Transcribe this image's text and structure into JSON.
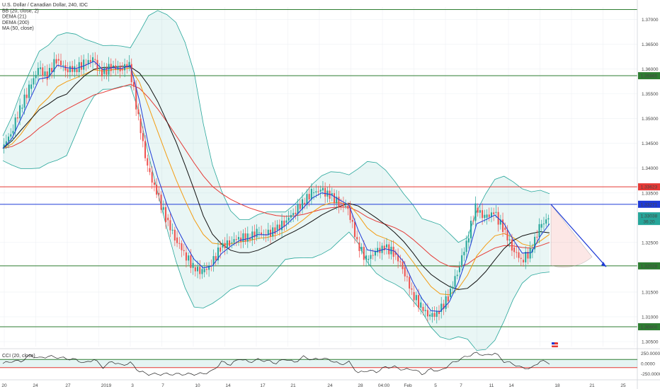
{
  "chart_data": {
    "type": "candlestick",
    "legend": [
      "U.S. Dollar / Canadian Dollar, 240, IDC",
      "BB (20, close, 2)",
      "DEMA (21)",
      "DEMA (200)",
      "MA (50, close)"
    ],
    "price_axis_labels": [
      "1.37000",
      "1.36500",
      "1.36000",
      "1.35500",
      "1.35000",
      "1.34500",
      "1.34000",
      "1.33500",
      "1.32500",
      "1.31500",
      "1.31000",
      "1.30500"
    ],
    "x_tick_labels": [
      "20",
      "24",
      "27",
      "2019",
      "3",
      "7",
      "10",
      "14",
      "17",
      "21",
      "24",
      "28",
      "04:00",
      "Feb",
      "5",
      "7",
      "11",
      "14",
      "18",
      "21",
      "25"
    ],
    "ylim": [
      1.304,
      1.3725
    ],
    "horizontal_levels": [
      {
        "label": "1.35865",
        "value": 1.35865,
        "color": "#2e7d32"
      },
      {
        "label": "1.33623",
        "value": 1.33623,
        "color": "#e53935"
      },
      {
        "label": "1.33271",
        "value": 1.33271,
        "color": "#1e3ad6"
      },
      {
        "label": "1.32028",
        "value": 1.32028,
        "color": "#2e7d32"
      },
      {
        "label": "1.30800",
        "value": 1.308,
        "color": "#2e7d32"
      },
      {
        "label": "",
        "value": 1.372,
        "color": "#2e7d32"
      }
    ],
    "current_price": {
      "label": "1.33038",
      "value": 1.33038,
      "sub": "36:20"
    },
    "close_series": [
      1.344,
      1.347,
      1.352,
      1.356,
      1.36,
      1.3585,
      1.362,
      1.36,
      1.36,
      1.361,
      1.362,
      1.359,
      1.3605,
      1.36,
      1.361,
      1.35,
      1.34,
      1.335,
      1.33,
      1.326,
      1.323,
      1.32,
      1.319,
      1.3205,
      1.324,
      1.325,
      1.326,
      1.326,
      1.327,
      1.3265,
      1.3275,
      1.329,
      1.331,
      1.333,
      1.335,
      1.3355,
      1.3345,
      1.333,
      1.332,
      1.325,
      1.3215,
      1.323,
      1.324,
      1.323,
      1.32,
      1.315,
      1.312,
      1.31,
      1.311,
      1.314,
      1.319,
      1.325,
      1.332,
      1.33,
      1.331,
      1.328,
      1.324,
      1.3215,
      1.323,
      1.328,
      1.33
    ],
    "indicator": {
      "label": "CCI (20, close)",
      "axis_labels": [
        "250.0000",
        "0.0000",
        "-250.0000"
      ],
      "ylim": [
        -330,
        330
      ],
      "levels": [
        100,
        -100
      ]
    },
    "colors": {
      "up": "#26a69a",
      "down": "#ef5350",
      "bb": "#26a69a",
      "dema21": "#1e3ad6",
      "dema200": "#e53935",
      "ma50": "#f39c12",
      "mid": "#111111"
    }
  }
}
